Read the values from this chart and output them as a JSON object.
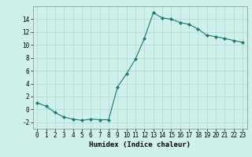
{
  "x": [
    0,
    1,
    2,
    3,
    4,
    5,
    6,
    7,
    8,
    9,
    10,
    11,
    12,
    13,
    14,
    15,
    16,
    17,
    18,
    19,
    20,
    21,
    22,
    23
  ],
  "y": [
    1,
    0.5,
    -0.5,
    -1.2,
    -1.5,
    -1.7,
    -1.5,
    -1.6,
    -1.6,
    3.5,
    5.5,
    7.8,
    11.0,
    15.0,
    14.2,
    14.0,
    13.5,
    13.2,
    12.5,
    11.5,
    11.3,
    11.0,
    10.7,
    10.4
  ],
  "line_color": "#1a7a6e",
  "marker": "D",
  "marker_size": 2,
  "bg_color": "#cff0eb",
  "grid_color": "#aad8d0",
  "xlabel": "Humidex (Indice chaleur)",
  "xlim": [
    -0.5,
    23.5
  ],
  "ylim": [
    -3,
    16
  ],
  "yticks": [
    -2,
    0,
    2,
    4,
    6,
    8,
    10,
    12,
    14
  ],
  "xticks": [
    0,
    1,
    2,
    3,
    4,
    5,
    6,
    7,
    8,
    9,
    10,
    11,
    12,
    13,
    14,
    15,
    16,
    17,
    18,
    19,
    20,
    21,
    22,
    23
  ],
  "tick_fontsize": 5.5,
  "label_fontsize": 6.5
}
